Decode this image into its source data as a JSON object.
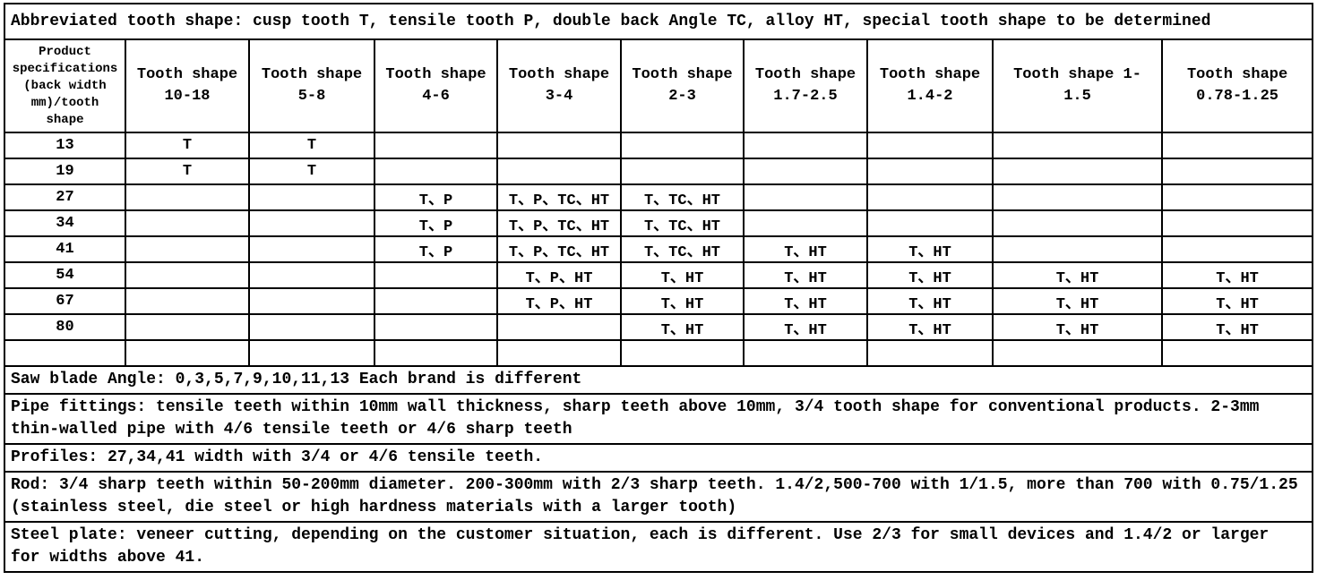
{
  "title": "Abbreviated tooth shape: cusp tooth T, tensile tooth P, double back Angle TC, alloy HT, special tooth shape to be determined",
  "table": {
    "columns": [
      "Product\nspecifications\n(back width\nmm)/tooth\nshape",
      "Tooth shape\n10-18",
      "Tooth shape\n5-8",
      "Tooth shape\n4-6",
      "Tooth shape\n3-4",
      "Tooth shape\n2-3",
      "Tooth shape\n1.7-2.5",
      "Tooth shape\n1.4-2",
      "Tooth shape 1-\n1.5",
      "Tooth shape\n0.78-1.25"
    ],
    "rows": [
      {
        "spec": "13",
        "cells": [
          "T",
          "T",
          "",
          "",
          "",
          "",
          "",
          "",
          ""
        ]
      },
      {
        "spec": "19",
        "cells": [
          "T",
          "T",
          "",
          "",
          "",
          "",
          "",
          "",
          ""
        ]
      },
      {
        "spec": "27",
        "cells": [
          "",
          "",
          "T、P",
          "T、P、TC、HT",
          "T、TC、HT",
          "",
          "",
          "",
          ""
        ]
      },
      {
        "spec": "34",
        "cells": [
          "",
          "",
          "T、P",
          "T、P、TC、HT",
          "T、TC、HT",
          "",
          "",
          "",
          ""
        ]
      },
      {
        "spec": "41",
        "cells": [
          "",
          "",
          "T、P",
          "T、P、TC、HT",
          "T、TC、HT",
          "T、HT",
          "T、HT",
          "",
          ""
        ]
      },
      {
        "spec": "54",
        "cells": [
          "",
          "",
          "",
          "T、P、HT",
          "T、HT",
          "T、HT",
          "T、HT",
          "T、HT",
          "T、HT"
        ]
      },
      {
        "spec": "67",
        "cells": [
          "",
          "",
          "",
          "T、P、HT",
          "T、HT",
          "T、HT",
          "T、HT",
          "T、HT",
          "T、HT"
        ]
      },
      {
        "spec": "80",
        "cells": [
          "",
          "",
          "",
          "",
          "T、HT",
          "T、HT",
          "T、HT",
          "T、HT",
          "T、HT"
        ]
      },
      {
        "spec": "",
        "cells": [
          "",
          "",
          "",
          "",
          "",
          "",
          "",
          "",
          ""
        ]
      }
    ]
  },
  "notes": [
    {
      "id": "note-saw-blade-angle",
      "text": "Saw blade Angle: 0,3,5,7,9,10,11,13 Each brand is different"
    },
    {
      "id": "note-pipe-fittings",
      "text": "Pipe fittings: tensile teeth within 10mm wall thickness, sharp teeth above 10mm, 3/4 tooth shape for conventional products. 2-3mm thin-walled pipe with 4/6 tensile teeth or 4/6 sharp teeth"
    },
    {
      "id": "note-profiles",
      "text": "Profiles: 27,34,41 width with 3/4 or 4/6 tensile teeth."
    },
    {
      "id": "note-rod",
      "text": "Rod: 3/4 sharp teeth within 50-200mm diameter. 200-300mm with 2/3 sharp teeth. 1.4/2,500-700 with 1/1.5, more than 700 with 0.75/1.25 (stainless steel, die steel or high hardness materials with a larger tooth)"
    },
    {
      "id": "note-steel-plate",
      "text": "Steel plate: veneer cutting, depending on the customer situation, each is different. Use 2/3 for small devices and 1.4/2 or larger for widths above 41."
    }
  ]
}
